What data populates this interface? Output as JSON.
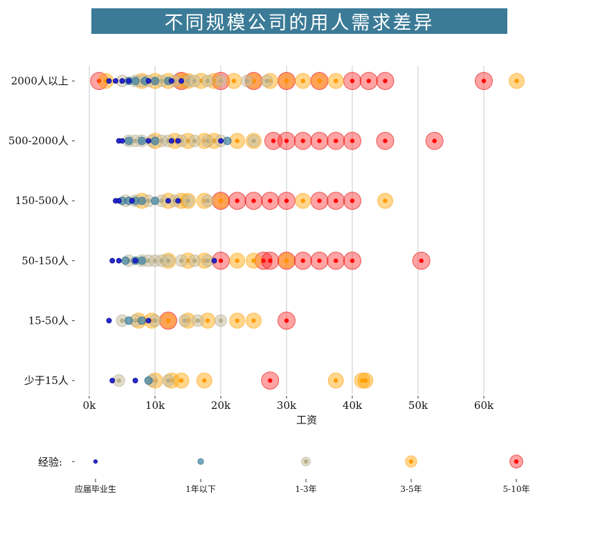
{
  "chart_data": {
    "type": "scatter",
    "title": "不同规模公司的用人需求差异",
    "xlabel": "工资",
    "ylabel": "",
    "xlim": [
      0,
      65000
    ],
    "x_ticks": [
      {
        "value": 0,
        "label": "0k"
      },
      {
        "value": 10000,
        "label": "10k"
      },
      {
        "value": 20000,
        "label": "20k"
      },
      {
        "value": 30000,
        "label": "30k"
      },
      {
        "value": 40000,
        "label": "40k"
      },
      {
        "value": 50000,
        "label": "50k"
      },
      {
        "value": 60000,
        "label": "60k"
      }
    ],
    "categories": [
      "2000人以上",
      "500-2000人",
      "150-500人",
      "50-150人",
      "15-50人",
      "少于15人"
    ],
    "grid": "vertical",
    "legend": {
      "title": "经验:",
      "placement": "bottom",
      "items": [
        {
          "name": "应届毕业生",
          "color": "#1f1fd0",
          "size": 1
        },
        {
          "name": "1年以下",
          "color": "#4a8aa8",
          "size": 2
        },
        {
          "name": "1-3年",
          "color": "#c8c0a0",
          "size": 3
        },
        {
          "name": "3-5年",
          "color": "#ffa500",
          "size": 4
        },
        {
          "name": "5-10年",
          "color": "#ff1a1a",
          "size": 5
        }
      ]
    },
    "series": [
      {
        "name": "应届毕业生",
        "points": [
          [
            "2000人以上",
            3000
          ],
          [
            "2000人以上",
            4000
          ],
          [
            "2000人以上",
            5000
          ],
          [
            "2000人以上",
            6000
          ],
          [
            "2000人以上",
            9000
          ],
          [
            "2000人以上",
            12500
          ],
          [
            "2000人以上",
            14000
          ],
          [
            "500-2000人",
            4500
          ],
          [
            "500-2000人",
            5000
          ],
          [
            "500-2000人",
            9000
          ],
          [
            "500-2000人",
            12500
          ],
          [
            "500-2000人",
            13500
          ],
          [
            "500-2000人",
            20000
          ],
          [
            "150-500人",
            4000
          ],
          [
            "150-500人",
            4500
          ],
          [
            "150-500人",
            6500
          ],
          [
            "150-500人",
            12000
          ],
          [
            "150-500人",
            13500
          ],
          [
            "50-150人",
            3500
          ],
          [
            "50-150人",
            4500
          ],
          [
            "50-150人",
            7000
          ],
          [
            "50-150人",
            19000
          ],
          [
            "15-50人",
            3000
          ],
          [
            "15-50人",
            9000
          ],
          [
            "少于15人",
            3500
          ],
          [
            "少于15人",
            7000
          ]
        ]
      },
      {
        "name": "1年以下",
        "points": [
          [
            "2000人以上",
            6000
          ],
          [
            "2000人以上",
            7000
          ],
          [
            "2000人以上",
            8500
          ],
          [
            "2000人以上",
            10000
          ],
          [
            "2000人以上",
            12000
          ],
          [
            "500-2000人",
            6000
          ],
          [
            "500-2000人",
            8000
          ],
          [
            "500-2000人",
            10000
          ],
          [
            "500-2000人",
            21000
          ],
          [
            "150-500人",
            5000
          ],
          [
            "150-500人",
            6000
          ],
          [
            "150-500人",
            7000
          ],
          [
            "150-500人",
            8000
          ],
          [
            "150-500人",
            10000
          ],
          [
            "50-150人",
            5500
          ],
          [
            "50-150人",
            7000
          ],
          [
            "50-150人",
            8000
          ],
          [
            "15-50人",
            6000
          ],
          [
            "15-50人",
            8000
          ],
          [
            "少于15人",
            9000
          ]
        ]
      },
      {
        "name": "1-3年",
        "points": [
          [
            "2000人以上",
            5000
          ],
          [
            "2000人以上",
            7000
          ],
          [
            "2000人以上",
            8000
          ],
          [
            "2000人以上",
            9000
          ],
          [
            "2000人以上",
            11000
          ],
          [
            "2000人以上",
            13000
          ],
          [
            "2000人以上",
            15000
          ],
          [
            "2000人以上",
            16000
          ],
          [
            "2000人以上",
            18000
          ],
          [
            "2000人以上",
            20000
          ],
          [
            "2000人以上",
            24000
          ],
          [
            "2000人以上",
            27000
          ],
          [
            "500-2000人",
            6000
          ],
          [
            "500-2000人",
            7000
          ],
          [
            "500-2000人",
            8000
          ],
          [
            "500-2000人",
            9500
          ],
          [
            "500-2000人",
            11000
          ],
          [
            "500-2000人",
            12000
          ],
          [
            "500-2000人",
            14000
          ],
          [
            "500-2000人",
            16000
          ],
          [
            "500-2000人",
            18000
          ],
          [
            "500-2000人",
            20000
          ],
          [
            "500-2000人",
            25000
          ],
          [
            "150-500人",
            5500
          ],
          [
            "150-500人",
            7000
          ],
          [
            "150-500人",
            9000
          ],
          [
            "150-500人",
            11000
          ],
          [
            "150-500人",
            13000
          ],
          [
            "150-500人",
            15000
          ],
          [
            "150-500人",
            18000
          ],
          [
            "50-150人",
            6000
          ],
          [
            "50-150人",
            8000
          ],
          [
            "50-150人",
            9000
          ],
          [
            "50-150人",
            10000
          ],
          [
            "50-150人",
            11000
          ],
          [
            "50-150人",
            12000
          ],
          [
            "50-150人",
            14000
          ],
          [
            "50-150人",
            16000
          ],
          [
            "50-150人",
            18000
          ],
          [
            "15-50人",
            5000
          ],
          [
            "15-50人",
            7000
          ],
          [
            "15-50人",
            10000
          ],
          [
            "15-50人",
            14500
          ],
          [
            "15-50人",
            16500
          ],
          [
            "15-50人",
            20000
          ],
          [
            "少于15人",
            4500
          ],
          [
            "少于15人",
            9500
          ],
          [
            "少于15人",
            12000
          ]
        ]
      },
      {
        "name": "3-5年",
        "points": [
          [
            "2000人以上",
            2500
          ],
          [
            "2000人以上",
            8000
          ],
          [
            "2000人以上",
            10000
          ],
          [
            "2000人以上",
            12000
          ],
          [
            "2000人以上",
            14000
          ],
          [
            "2000人以上",
            15000
          ],
          [
            "2000人以上",
            17000
          ],
          [
            "2000人以上",
            19000
          ],
          [
            "2000人以上",
            22000
          ],
          [
            "2000人以上",
            25000
          ],
          [
            "2000人以上",
            27500
          ],
          [
            "2000人以上",
            30000
          ],
          [
            "2000人以上",
            32500
          ],
          [
            "2000人以上",
            35000
          ],
          [
            "2000人以上",
            37500
          ],
          [
            "2000人以上",
            65000
          ],
          [
            "500-2000人",
            10000
          ],
          [
            "500-2000人",
            13000
          ],
          [
            "500-2000人",
            15000
          ],
          [
            "500-2000人",
            17500
          ],
          [
            "500-2000人",
            19000
          ],
          [
            "500-2000人",
            22500
          ],
          [
            "500-2000人",
            25000
          ],
          [
            "150-500人",
            8000
          ],
          [
            "150-500人",
            12000
          ],
          [
            "150-500人",
            14000
          ],
          [
            "150-500人",
            15000
          ],
          [
            "150-500人",
            17500
          ],
          [
            "150-500人",
            20000
          ],
          [
            "150-500人",
            32500
          ],
          [
            "150-500人",
            45000
          ],
          [
            "50-150人",
            12000
          ],
          [
            "50-150人",
            15000
          ],
          [
            "50-150人",
            17500
          ],
          [
            "50-150人",
            22500
          ],
          [
            "50-150人",
            25000
          ],
          [
            "50-150人",
            30000
          ],
          [
            "15-50人",
            7500
          ],
          [
            "15-50人",
            9500
          ],
          [
            "15-50人",
            12000
          ],
          [
            "15-50人",
            15000
          ],
          [
            "15-50人",
            18000
          ],
          [
            "15-50人",
            22500
          ],
          [
            "15-50人",
            25000
          ],
          [
            "少于15人",
            10000
          ],
          [
            "少于15人",
            12500
          ],
          [
            "少于15人",
            14000
          ],
          [
            "少于15人",
            17500
          ],
          [
            "少于15人",
            37500
          ],
          [
            "少于15人",
            41500
          ],
          [
            "少于15人",
            42000
          ]
        ]
      },
      {
        "name": "5-10年",
        "points": [
          [
            "2000人以上",
            1500
          ],
          [
            "2000人以上",
            14000
          ],
          [
            "2000人以上",
            20000
          ],
          [
            "2000人以上",
            25000
          ],
          [
            "2000人以上",
            30000
          ],
          [
            "2000人以上",
            35000
          ],
          [
            "2000人以上",
            40000
          ],
          [
            "2000人以上",
            42500
          ],
          [
            "2000人以上",
            45000
          ],
          [
            "2000人以上",
            60000
          ],
          [
            "500-2000人",
            28000
          ],
          [
            "500-2000人",
            30000
          ],
          [
            "500-2000人",
            32500
          ],
          [
            "500-2000人",
            35000
          ],
          [
            "500-2000人",
            37500
          ],
          [
            "500-2000人",
            40000
          ],
          [
            "500-2000人",
            45000
          ],
          [
            "500-2000人",
            52500
          ],
          [
            "150-500人",
            20000
          ],
          [
            "150-500人",
            22500
          ],
          [
            "150-500人",
            25000
          ],
          [
            "150-500人",
            27500
          ],
          [
            "150-500人",
            30000
          ],
          [
            "150-500人",
            35000
          ],
          [
            "150-500人",
            37500
          ],
          [
            "150-500人",
            40000
          ],
          [
            "50-150人",
            20000
          ],
          [
            "50-150人",
            26500
          ],
          [
            "50-150人",
            27500
          ],
          [
            "50-150人",
            30000
          ],
          [
            "50-150人",
            32500
          ],
          [
            "50-150人",
            35000
          ],
          [
            "50-150人",
            37500
          ],
          [
            "50-150人",
            40000
          ],
          [
            "50-150人",
            50500
          ],
          [
            "15-50人",
            12000
          ],
          [
            "15-50人",
            30000
          ],
          [
            "少于15人",
            27500
          ]
        ]
      }
    ]
  }
}
